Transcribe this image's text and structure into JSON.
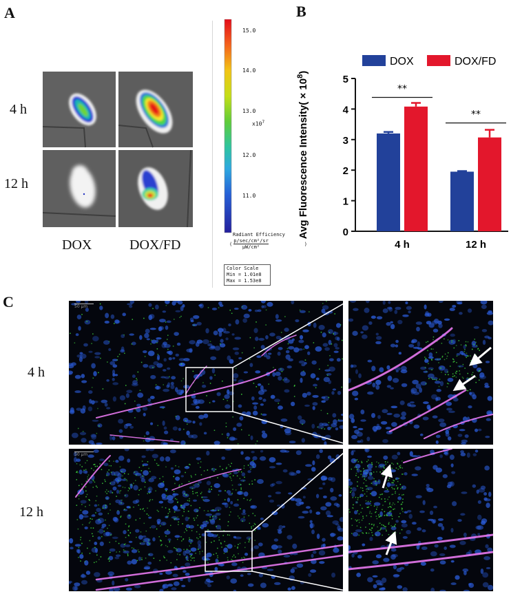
{
  "panels": {
    "a": "A",
    "b": "B",
    "c": "C"
  },
  "imaging": {
    "rows": [
      "4 h",
      "12 h"
    ],
    "cols": [
      "DOX",
      "DOX/FD"
    ],
    "scale_ticks": [
      "15.0",
      "14.0",
      "13.0",
      "12.0",
      "11.0"
    ],
    "scale_unit": "x10",
    "scale_unit_exp": "7",
    "radiant_title": "Radiant Efficiency",
    "radiant_units_num": "p/sec/cm²/sr",
    "radiant_units_den": "μW/cm²",
    "color_scale_title": "Color Scale",
    "color_scale_min": "Min = 1.01e8",
    "color_scale_max": "Max = 1.53e8"
  },
  "chart_data": {
    "type": "bar",
    "categories": [
      "4 h",
      "12 h"
    ],
    "series": [
      {
        "name": "DOX",
        "values": [
          3.2,
          1.95
        ],
        "errors": [
          0.05,
          0.02
        ],
        "color": "#22419a"
      },
      {
        "name": "DOX/FD",
        "values": [
          4.08,
          3.07
        ],
        "errors": [
          0.12,
          0.25
        ],
        "color": "#e3172c"
      }
    ],
    "ylabel": "Avg Fluorescence Intensity( × 10",
    "ylabel_exp": "8",
    "ylabel_close": ")",
    "ylim": [
      0,
      5
    ],
    "yticks": [
      "0",
      "1",
      "2",
      "3",
      "4",
      "5"
    ],
    "significance": [
      "**",
      "**"
    ]
  },
  "microscopy": {
    "rows": [
      "4 h",
      "12 h"
    ],
    "scale_bar_label": "50 μm"
  },
  "colors": {
    "dox": "#22419a",
    "dox_fd": "#e3172c",
    "nuclei": "#2a5bd7",
    "drug": "#3fd43b",
    "vessel": "#e879f0"
  }
}
